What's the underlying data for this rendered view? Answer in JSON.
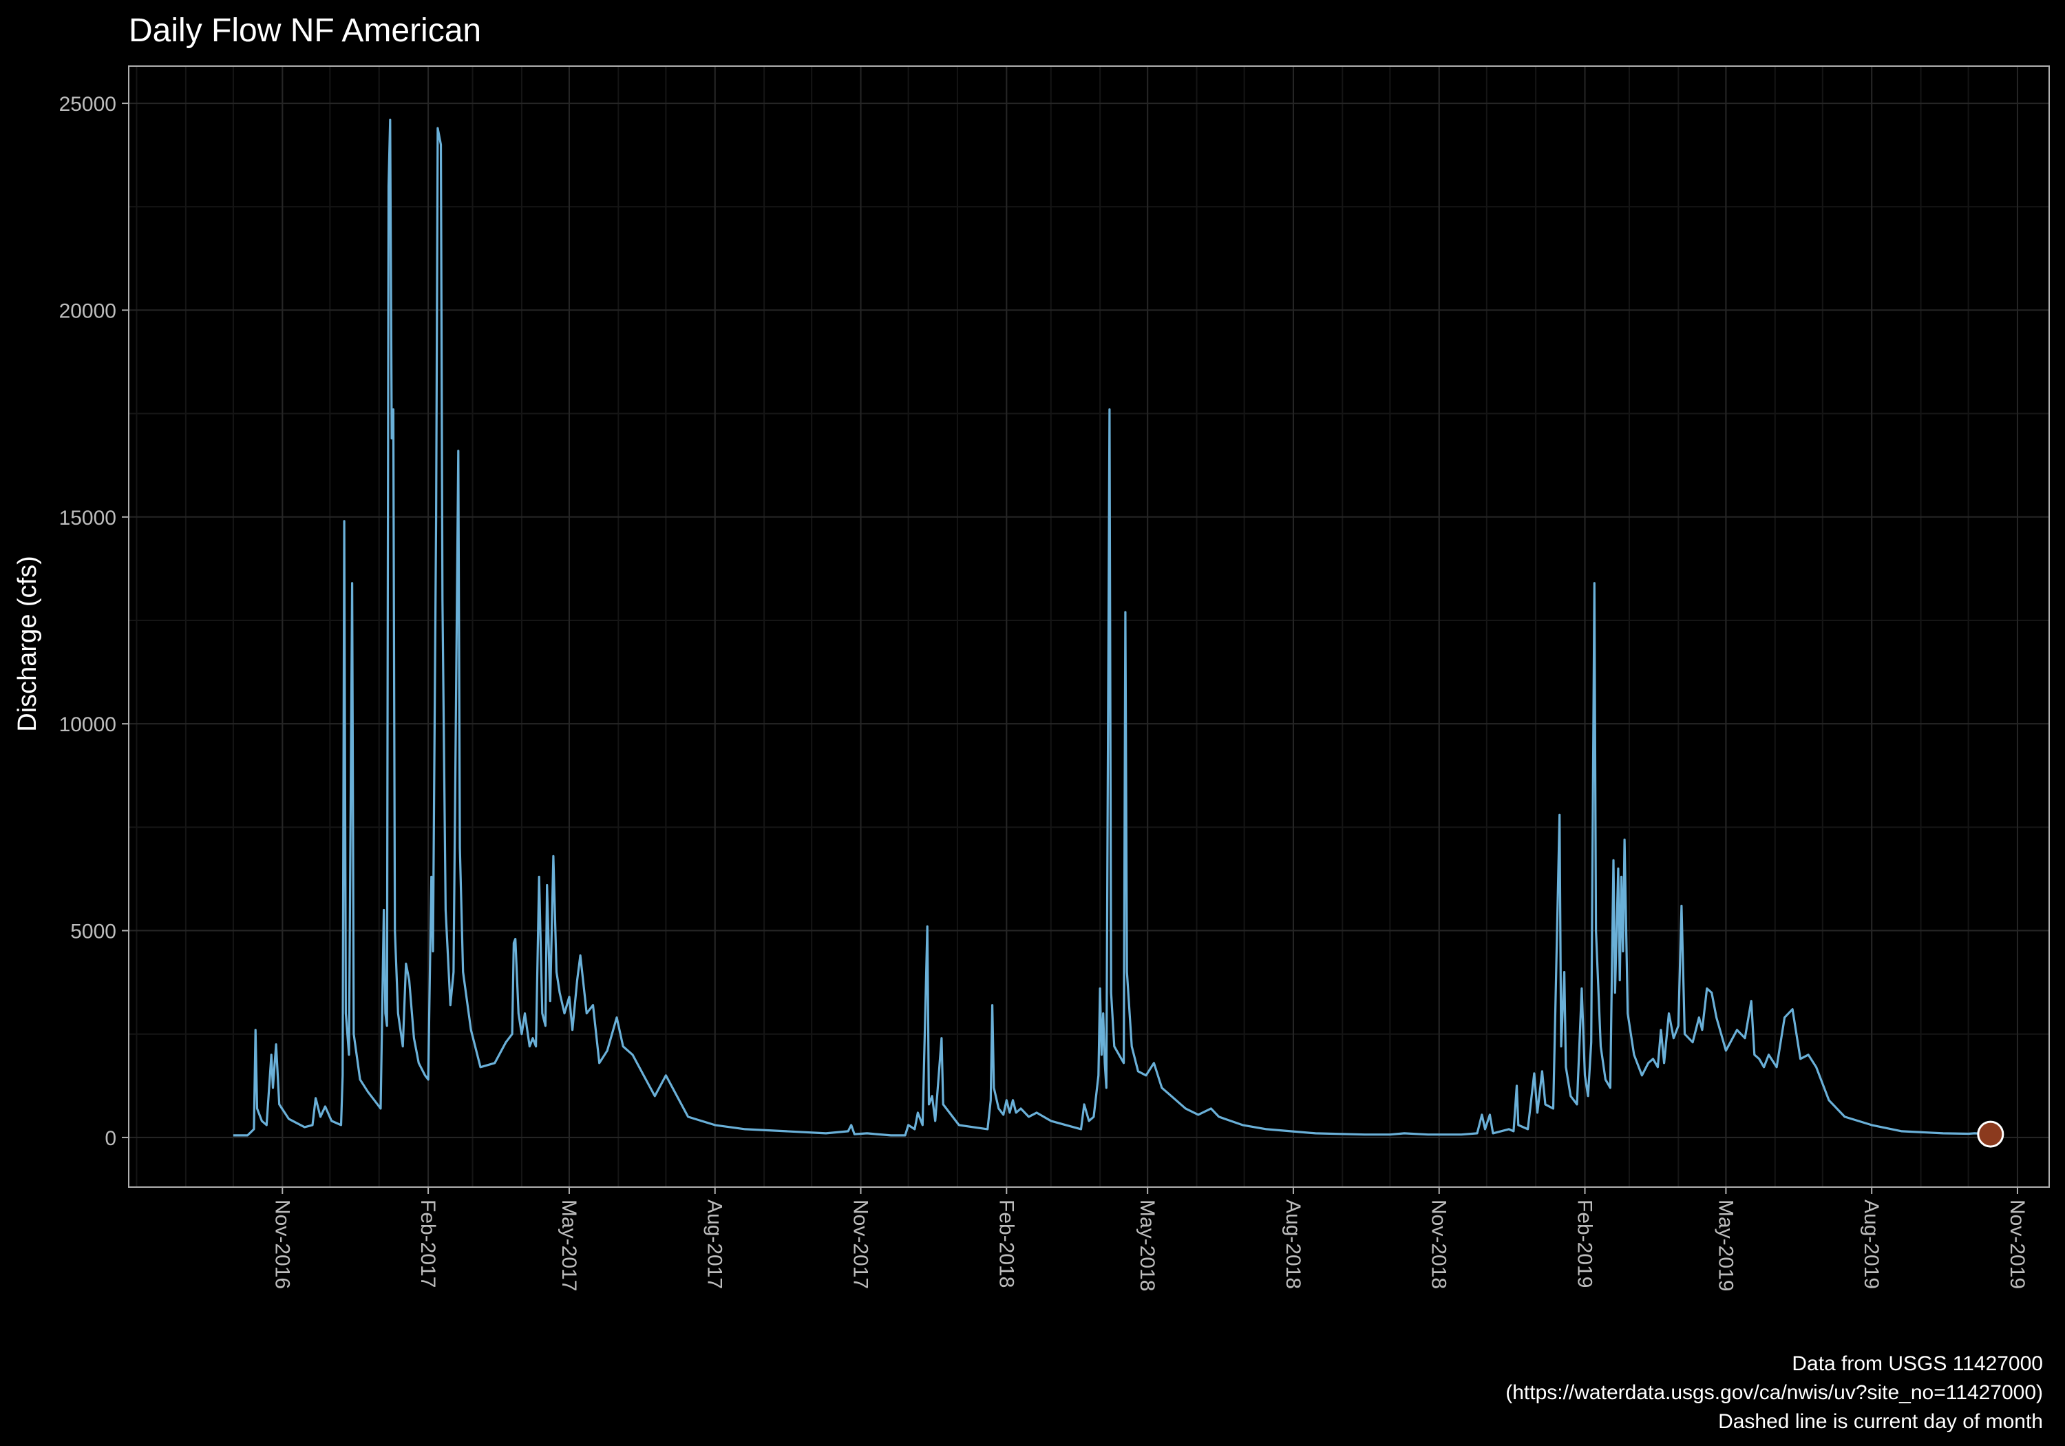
{
  "chart_data": {
    "type": "line",
    "title": "Daily Flow NF American",
    "xlabel": "",
    "ylabel": "Discharge (cfs)",
    "xlim": [
      "2016-07-27",
      "2019-11-21"
    ],
    "ylim": [
      -1200,
      25900
    ],
    "y_ticks": [
      0,
      5000,
      10000,
      15000,
      20000,
      25000
    ],
    "x_ticks": [
      {
        "date": "2016-11-01",
        "label": "Nov-2016"
      },
      {
        "date": "2017-02-01",
        "label": "Feb-2017"
      },
      {
        "date": "2017-05-01",
        "label": "May-2017"
      },
      {
        "date": "2017-08-01",
        "label": "Aug-2017"
      },
      {
        "date": "2017-11-01",
        "label": "Nov-2017"
      },
      {
        "date": "2018-02-01",
        "label": "Feb-2018"
      },
      {
        "date": "2018-05-01",
        "label": "May-2018"
      },
      {
        "date": "2018-08-01",
        "label": "Aug-2018"
      },
      {
        "date": "2018-11-01",
        "label": "Nov-2018"
      },
      {
        "date": "2019-02-01",
        "label": "Feb-2019"
      },
      {
        "date": "2019-05-01",
        "label": "May-2019"
      },
      {
        "date": "2019-08-01",
        "label": "Aug-2019"
      },
      {
        "date": "2019-11-01",
        "label": "Nov-2019"
      }
    ],
    "grid": true,
    "colors": {
      "background": "#000000",
      "panel_border": "#b0b0b0",
      "grid_major": "#262626",
      "grid_minor": "#151515",
      "line": "#6ab0d8",
      "marker": "#8b3a1e",
      "marker_outline": "#ffffff"
    },
    "series": [
      {
        "points": [
          [
            "2016-10-01",
            50
          ],
          [
            "2016-10-10",
            50
          ],
          [
            "2016-10-14",
            200
          ],
          [
            "2016-10-15",
            2600
          ],
          [
            "2016-10-16",
            700
          ],
          [
            "2016-10-19",
            400
          ],
          [
            "2016-10-22",
            300
          ],
          [
            "2016-10-25",
            2000
          ],
          [
            "2016-10-26",
            1200
          ],
          [
            "2016-10-28",
            2250
          ],
          [
            "2016-10-30",
            800
          ],
          [
            "2016-11-05",
            450
          ],
          [
            "2016-11-15",
            250
          ],
          [
            "2016-11-20",
            300
          ],
          [
            "2016-11-22",
            950
          ],
          [
            "2016-11-25",
            500
          ],
          [
            "2016-11-28",
            750
          ],
          [
            "2016-12-02",
            400
          ],
          [
            "2016-12-08",
            300
          ],
          [
            "2016-12-09",
            1500
          ],
          [
            "2016-12-10",
            14900
          ],
          [
            "2016-12-11",
            3000
          ],
          [
            "2016-12-13",
            2000
          ],
          [
            "2016-12-15",
            13400
          ],
          [
            "2016-12-16",
            2500
          ],
          [
            "2016-12-20",
            1400
          ],
          [
            "2016-12-25",
            1100
          ],
          [
            "2016-12-30",
            850
          ],
          [
            "2017-01-02",
            700
          ],
          [
            "2017-01-04",
            5500
          ],
          [
            "2017-01-05",
            3000
          ],
          [
            "2017-01-06",
            2700
          ],
          [
            "2017-01-07",
            23000
          ],
          [
            "2017-01-08",
            24600
          ],
          [
            "2017-01-09",
            16900
          ],
          [
            "2017-01-10",
            17600
          ],
          [
            "2017-01-11",
            5000
          ],
          [
            "2017-01-13",
            3000
          ],
          [
            "2017-01-16",
            2200
          ],
          [
            "2017-01-18",
            4200
          ],
          [
            "2017-01-20",
            3800
          ],
          [
            "2017-01-23",
            2400
          ],
          [
            "2017-01-26",
            1800
          ],
          [
            "2017-01-30",
            1500
          ],
          [
            "2017-02-01",
            1400
          ],
          [
            "2017-02-03",
            6300
          ],
          [
            "2017-02-04",
            4500
          ],
          [
            "2017-02-06",
            15000
          ],
          [
            "2017-02-07",
            24400
          ],
          [
            "2017-02-09",
            24000
          ],
          [
            "2017-02-10",
            13000
          ],
          [
            "2017-02-12",
            5500
          ],
          [
            "2017-02-15",
            3200
          ],
          [
            "2017-02-17",
            4000
          ],
          [
            "2017-02-20",
            16600
          ],
          [
            "2017-02-21",
            7000
          ],
          [
            "2017-02-23",
            4000
          ],
          [
            "2017-02-28",
            2600
          ],
          [
            "2017-03-06",
            1700
          ],
          [
            "2017-03-15",
            1800
          ],
          [
            "2017-03-22",
            2300
          ],
          [
            "2017-03-26",
            2500
          ],
          [
            "2017-03-27",
            4700
          ],
          [
            "2017-03-28",
            4800
          ],
          [
            "2017-03-30",
            3000
          ],
          [
            "2017-04-01",
            2500
          ],
          [
            "2017-04-03",
            3000
          ],
          [
            "2017-04-06",
            2200
          ],
          [
            "2017-04-08",
            2400
          ],
          [
            "2017-04-10",
            2200
          ],
          [
            "2017-04-12",
            6300
          ],
          [
            "2017-04-14",
            3000
          ],
          [
            "2017-04-16",
            2700
          ],
          [
            "2017-04-17",
            6100
          ],
          [
            "2017-04-19",
            3300
          ],
          [
            "2017-04-21",
            6800
          ],
          [
            "2017-04-23",
            4000
          ],
          [
            "2017-04-25",
            3500
          ],
          [
            "2017-04-28",
            3000
          ],
          [
            "2017-05-01",
            3400
          ],
          [
            "2017-05-03",
            2600
          ],
          [
            "2017-05-06",
            3800
          ],
          [
            "2017-05-08",
            4400
          ],
          [
            "2017-05-12",
            3000
          ],
          [
            "2017-05-16",
            3200
          ],
          [
            "2017-05-20",
            1800
          ],
          [
            "2017-05-25",
            2100
          ],
          [
            "2017-05-31",
            2900
          ],
          [
            "2017-06-04",
            2200
          ],
          [
            "2017-06-10",
            2000
          ],
          [
            "2017-06-17",
            1500
          ],
          [
            "2017-06-24",
            1000
          ],
          [
            "2017-07-01",
            1500
          ],
          [
            "2017-07-15",
            500
          ],
          [
            "2017-08-01",
            300
          ],
          [
            "2017-08-20",
            200
          ],
          [
            "2017-09-15",
            150
          ],
          [
            "2017-10-10",
            100
          ],
          [
            "2017-10-24",
            150
          ],
          [
            "2017-10-26",
            300
          ],
          [
            "2017-10-28",
            80
          ],
          [
            "2017-11-05",
            100
          ],
          [
            "2017-11-11",
            80
          ],
          [
            "2017-11-20",
            50
          ],
          [
            "2017-11-29",
            50
          ],
          [
            "2017-12-01",
            300
          ],
          [
            "2017-12-05",
            200
          ],
          [
            "2017-12-07",
            600
          ],
          [
            "2017-12-10",
            300
          ],
          [
            "2017-12-13",
            5100
          ],
          [
            "2017-12-14",
            800
          ],
          [
            "2017-12-16",
            1000
          ],
          [
            "2017-12-18",
            400
          ],
          [
            "2017-12-22",
            2400
          ],
          [
            "2017-12-23",
            800
          ],
          [
            "2018-01-02",
            300
          ],
          [
            "2018-01-20",
            200
          ],
          [
            "2018-01-22",
            900
          ],
          [
            "2018-01-23",
            3200
          ],
          [
            "2018-01-24",
            1200
          ],
          [
            "2018-01-27",
            700
          ],
          [
            "2018-01-30",
            550
          ],
          [
            "2018-02-01",
            900
          ],
          [
            "2018-02-03",
            600
          ],
          [
            "2018-02-05",
            900
          ],
          [
            "2018-02-07",
            600
          ],
          [
            "2018-02-10",
            700
          ],
          [
            "2018-02-15",
            500
          ],
          [
            "2018-02-20",
            600
          ],
          [
            "2018-03-01",
            400
          ],
          [
            "2018-03-20",
            200
          ],
          [
            "2018-03-22",
            800
          ],
          [
            "2018-03-25",
            400
          ],
          [
            "2018-03-28",
            500
          ],
          [
            "2018-03-31",
            1500
          ],
          [
            "2018-04-01",
            3600
          ],
          [
            "2018-04-02",
            2000
          ],
          [
            "2018-04-03",
            3000
          ],
          [
            "2018-04-04",
            1800
          ],
          [
            "2018-04-05",
            1200
          ],
          [
            "2018-04-07",
            17600
          ],
          [
            "2018-04-08",
            3500
          ],
          [
            "2018-04-10",
            2200
          ],
          [
            "2018-04-13",
            2000
          ],
          [
            "2018-04-16",
            1800
          ],
          [
            "2018-04-17",
            12700
          ],
          [
            "2018-04-18",
            4000
          ],
          [
            "2018-04-21",
            2200
          ],
          [
            "2018-04-25",
            1600
          ],
          [
            "2018-04-30",
            1500
          ],
          [
            "2018-05-05",
            1800
          ],
          [
            "2018-05-10",
            1200
          ],
          [
            "2018-05-16",
            1000
          ],
          [
            "2018-05-25",
            700
          ],
          [
            "2018-06-02",
            550
          ],
          [
            "2018-06-10",
            700
          ],
          [
            "2018-06-15",
            500
          ],
          [
            "2018-06-30",
            300
          ],
          [
            "2018-07-15",
            200
          ],
          [
            "2018-08-15",
            100
          ],
          [
            "2018-09-15",
            70
          ],
          [
            "2018-10-01",
            70
          ],
          [
            "2018-10-10",
            100
          ],
          [
            "2018-10-25",
            70
          ],
          [
            "2018-11-15",
            70
          ],
          [
            "2018-11-25",
            100
          ],
          [
            "2018-11-28",
            550
          ],
          [
            "2018-11-30",
            200
          ],
          [
            "2018-12-03",
            550
          ],
          [
            "2018-12-05",
            100
          ],
          [
            "2018-12-15",
            200
          ],
          [
            "2018-12-18",
            150
          ],
          [
            "2018-12-20",
            1250
          ],
          [
            "2018-12-21",
            300
          ],
          [
            "2018-12-27",
            200
          ],
          [
            "2018-12-31",
            1550
          ],
          [
            "2019-01-02",
            600
          ],
          [
            "2019-01-05",
            1600
          ],
          [
            "2019-01-07",
            800
          ],
          [
            "2019-01-12",
            700
          ],
          [
            "2019-01-16",
            7800
          ],
          [
            "2019-01-17",
            2200
          ],
          [
            "2019-01-19",
            4000
          ],
          [
            "2019-01-20",
            1700
          ],
          [
            "2019-01-23",
            1000
          ],
          [
            "2019-01-27",
            800
          ],
          [
            "2019-01-30",
            3600
          ],
          [
            "2019-02-01",
            1500
          ],
          [
            "2019-02-03",
            1000
          ],
          [
            "2019-02-05",
            2300
          ],
          [
            "2019-02-07",
            13400
          ],
          [
            "2019-02-08",
            5000
          ],
          [
            "2019-02-11",
            2200
          ],
          [
            "2019-02-14",
            1400
          ],
          [
            "2019-02-17",
            1200
          ],
          [
            "2019-02-19",
            6700
          ],
          [
            "2019-02-20",
            3500
          ],
          [
            "2019-02-22",
            6500
          ],
          [
            "2019-02-23",
            3800
          ],
          [
            "2019-02-24",
            6300
          ],
          [
            "2019-02-25",
            4500
          ],
          [
            "2019-02-26",
            7200
          ],
          [
            "2019-02-28",
            3000
          ],
          [
            "2019-03-04",
            2000
          ],
          [
            "2019-03-09",
            1500
          ],
          [
            "2019-03-13",
            1800
          ],
          [
            "2019-03-16",
            1900
          ],
          [
            "2019-03-19",
            1700
          ],
          [
            "2019-03-21",
            2600
          ],
          [
            "2019-03-23",
            1800
          ],
          [
            "2019-03-26",
            3000
          ],
          [
            "2019-03-29",
            2400
          ],
          [
            "2019-04-01",
            2700
          ],
          [
            "2019-04-03",
            5600
          ],
          [
            "2019-04-05",
            2500
          ],
          [
            "2019-04-10",
            2300
          ],
          [
            "2019-04-14",
            2900
          ],
          [
            "2019-04-16",
            2600
          ],
          [
            "2019-04-19",
            3600
          ],
          [
            "2019-04-22",
            3500
          ],
          [
            "2019-04-25",
            2900
          ],
          [
            "2019-05-01",
            2100
          ],
          [
            "2019-05-08",
            2600
          ],
          [
            "2019-05-13",
            2400
          ],
          [
            "2019-05-17",
            3300
          ],
          [
            "2019-05-19",
            2000
          ],
          [
            "2019-05-22",
            1900
          ],
          [
            "2019-05-25",
            1700
          ],
          [
            "2019-05-28",
            2000
          ],
          [
            "2019-06-02",
            1700
          ],
          [
            "2019-06-07",
            2900
          ],
          [
            "2019-06-12",
            3100
          ],
          [
            "2019-06-17",
            1900
          ],
          [
            "2019-06-22",
            2000
          ],
          [
            "2019-06-27",
            1700
          ],
          [
            "2019-07-05",
            900
          ],
          [
            "2019-07-15",
            500
          ],
          [
            "2019-08-01",
            300
          ],
          [
            "2019-08-20",
            150
          ],
          [
            "2019-09-15",
            100
          ],
          [
            "2019-10-01",
            90
          ],
          [
            "2019-10-05",
            100
          ],
          [
            "2019-10-15",
            80
          ]
        ]
      }
    ],
    "marker": {
      "date": "2019-10-15",
      "value": 80
    },
    "caption": [
      "Data from USGS 11427000",
      "(https://waterdata.usgs.gov/ca/nwis/uv?site_no=11427000)",
      "Dashed line is current day of month"
    ]
  }
}
